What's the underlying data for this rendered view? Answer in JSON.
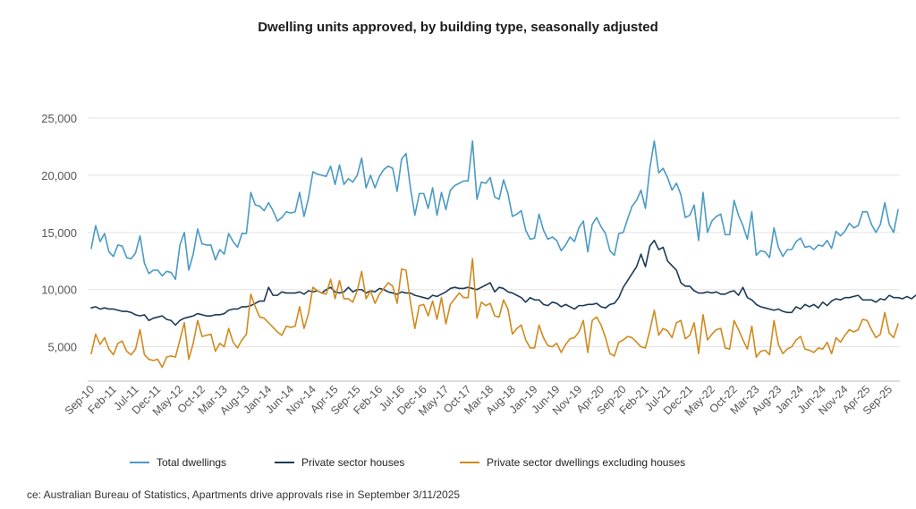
{
  "chart_data": {
    "type": "line",
    "title": "Dwelling units approved, by building type, seasonally adjusted",
    "xlabel": "",
    "ylabel": "",
    "ylim": [
      2000,
      25000
    ],
    "yticks": [
      5000,
      10000,
      15000,
      20000,
      25000
    ],
    "ytick_labels": [
      "5,000",
      "10,000",
      "15,000",
      "20,000",
      "25,000"
    ],
    "x_start": "2010-09",
    "x_end": "2025-09",
    "xtick_labels": [
      "Sep-10",
      "Feb-11",
      "Jul-11",
      "Dec-11",
      "May-12",
      "Oct-12",
      "Mar-13",
      "Aug-13",
      "Jan-14",
      "Jun-14",
      "Nov-14",
      "Apr-15",
      "Sep-15",
      "Feb-16",
      "Jul-16",
      "Dec-16",
      "May-17",
      "Oct-17",
      "Mar-18",
      "Aug-18",
      "Jan-19",
      "Jun-19",
      "Nov-19",
      "Apr-20",
      "Sep-20",
      "Feb-21",
      "Jul-21",
      "Dec-21",
      "May-22",
      "Oct-22",
      "Mar-23",
      "Aug-23",
      "Jan-24",
      "Jun-24",
      "Nov-24",
      "Apr-25",
      "Sep-25"
    ],
    "grid": "horizontal",
    "legend_position": "bottom",
    "series": [
      {
        "name": "Total dwellings",
        "color": "#4a9ac4",
        "values": [
          13600,
          15600,
          14200,
          14900,
          13300,
          12900,
          13900,
          13800,
          12800,
          12700,
          13200,
          14700,
          12300,
          11400,
          11700,
          11700,
          11200,
          11600,
          11500,
          10900,
          13900,
          15000,
          11700,
          13100,
          15300,
          14000,
          13900,
          13900,
          12600,
          13500,
          13100,
          14900,
          14200,
          13700,
          14900,
          14900,
          18500,
          17400,
          17300,
          16900,
          17600,
          16900,
          16000,
          16300,
          16800,
          16700,
          16800,
          18500,
          16400,
          18000,
          20300,
          20100,
          20000,
          19900,
          20800,
          19200,
          20900,
          19200,
          19700,
          19400,
          20000,
          21500,
          18900,
          20000,
          18900,
          19900,
          20500,
          20800,
          20600,
          18600,
          21400,
          21900,
          18900,
          16500,
          18400,
          18400,
          17100,
          18900,
          16500,
          18500,
          17000,
          18700,
          19100,
          19300,
          19500,
          19500,
          23000,
          17900,
          19400,
          19300,
          19800,
          18100,
          17900,
          19600,
          18400,
          16400,
          16600,
          16900,
          15200,
          14400,
          14500,
          16600,
          15200,
          14400,
          14600,
          14300,
          13400,
          13900,
          14600,
          14200,
          15400,
          16000,
          13300,
          15700,
          16300,
          15500,
          14900,
          13400,
          13000,
          14900,
          15000,
          16200,
          17300,
          17800,
          18700,
          17100,
          20600,
          23000,
          20200,
          20600,
          19800,
          18700,
          19300,
          18300,
          16300,
          16500,
          17400,
          14300,
          18500,
          15000,
          16000,
          16400,
          16600,
          14800,
          14800,
          17800,
          16500,
          15600,
          14400,
          16800,
          13000,
          13400,
          13300,
          12800,
          15400,
          13700,
          12900,
          13500,
          13500,
          14200,
          14500,
          13700,
          13800,
          13500,
          13900,
          13800,
          14300,
          13600,
          15100,
          14700,
          15100,
          15800,
          15400,
          15600,
          16800,
          16800,
          15700,
          15000,
          15700,
          17600,
          15700,
          15000,
          17000
        ]
      },
      {
        "name": "Private sector houses",
        "color": "#1c3a57",
        "values": [
          8400,
          8500,
          8300,
          8400,
          8300,
          8300,
          8200,
          8100,
          8100,
          8000,
          7800,
          7700,
          7800,
          7300,
          7500,
          7600,
          7700,
          7400,
          7300,
          6900,
          7300,
          7500,
          7600,
          7700,
          7900,
          7800,
          7700,
          7700,
          7800,
          7800,
          7900,
          8200,
          8300,
          8300,
          8500,
          8500,
          8600,
          8800,
          9000,
          9000,
          10200,
          9500,
          9500,
          9800,
          9700,
          9700,
          9700,
          9800,
          9600,
          9900,
          9800,
          9900,
          9700,
          10000,
          10200,
          9800,
          9700,
          9800,
          10200,
          9800,
          10000,
          10000,
          9700,
          9900,
          9800,
          10100,
          10000,
          9800,
          9700,
          9600,
          9800,
          9700,
          9700,
          9500,
          9400,
          9300,
          9200,
          9500,
          9400,
          9600,
          9800,
          10100,
          10200,
          10100,
          10100,
          10200,
          10100,
          10000,
          10200,
          10400,
          10600,
          9800,
          10200,
          10100,
          9800,
          9700,
          9500,
          9300,
          8900,
          9300,
          9100,
          9100,
          8700,
          8600,
          8900,
          8800,
          8500,
          8700,
          8500,
          8300,
          8600,
          8600,
          8700,
          8700,
          8800,
          8500,
          8400,
          8700,
          8800,
          9300,
          10200,
          10800,
          11400,
          12000,
          13100,
          12000,
          13800,
          14300,
          13500,
          13700,
          12500,
          12100,
          11700,
          10600,
          10300,
          10300,
          9900,
          9700,
          9700,
          9800,
          9700,
          9800,
          9600,
          9600,
          9800,
          9900,
          9500,
          10200,
          9300,
          9100,
          8700,
          8500,
          8400,
          8300,
          8200,
          8300,
          8100,
          8000,
          8000,
          8500,
          8300,
          8700,
          8500,
          8700,
          8400,
          8900,
          8600,
          9000,
          9200,
          9100,
          9300,
          9300,
          9400,
          9500,
          9100,
          9100,
          9100,
          8900,
          9200,
          9100,
          9500,
          9300,
          9300,
          9200,
          9400,
          9200,
          9500
        ]
      },
      {
        "name": "Private sector dwellings excluding houses",
        "color": "#d08a1e",
        "values": [
          4400,
          6100,
          5200,
          5800,
          4800,
          4300,
          5300,
          5500,
          4600,
          4300,
          4800,
          6500,
          4300,
          3900,
          3800,
          3900,
          3200,
          4100,
          4200,
          4100,
          5600,
          7100,
          3900,
          5300,
          7300,
          5900,
          6000,
          6100,
          4600,
          5300,
          5000,
          6600,
          5400,
          4900,
          5600,
          6100,
          9600,
          8500,
          7600,
          7500,
          7100,
          6700,
          6300,
          6000,
          6800,
          6700,
          6800,
          8500,
          6600,
          7900,
          10200,
          9900,
          9700,
          9600,
          10900,
          9200,
          10800,
          9200,
          9200,
          8900,
          9900,
          11600,
          9200,
          9900,
          8800,
          9600,
          10100,
          10600,
          10300,
          8800,
          11800,
          11700,
          8900,
          6600,
          8600,
          8700,
          7700,
          9000,
          7400,
          9300,
          7000,
          8700,
          9200,
          9700,
          9300,
          9300,
          12700,
          7500,
          8900,
          8600,
          8800,
          7700,
          7600,
          9100,
          8300,
          6100,
          6600,
          6900,
          5600,
          4900,
          4900,
          6900,
          5800,
          5100,
          5000,
          5300,
          4500,
          5200,
          5700,
          5800,
          6300,
          7300,
          4500,
          7300,
          7600,
          6900,
          5800,
          4400,
          4200,
          5400,
          5600,
          5900,
          5800,
          5400,
          5000,
          4900,
          6400,
          8200,
          6000,
          6600,
          6400,
          5800,
          7100,
          7300,
          5700,
          6000,
          7100,
          4400,
          7800,
          5600,
          6100,
          6500,
          6600,
          4900,
          4800,
          7300,
          6500,
          5600,
          4800,
          6800,
          4100,
          4600,
          4700,
          4300,
          7300,
          5200,
          4400,
          4800,
          5000,
          5600,
          5900,
          4800,
          4700,
          4500,
          4900,
          4800,
          5400,
          4400,
          5800,
          5400,
          6000,
          6500,
          6300,
          6500,
          7400,
          7300,
          6500,
          5800,
          6100,
          8000,
          6200,
          5800,
          7000
        ]
      }
    ]
  },
  "source_text": "ce: Australian Bureau of Statistics, Apartments drive approvals rise in September 3/11/2025"
}
